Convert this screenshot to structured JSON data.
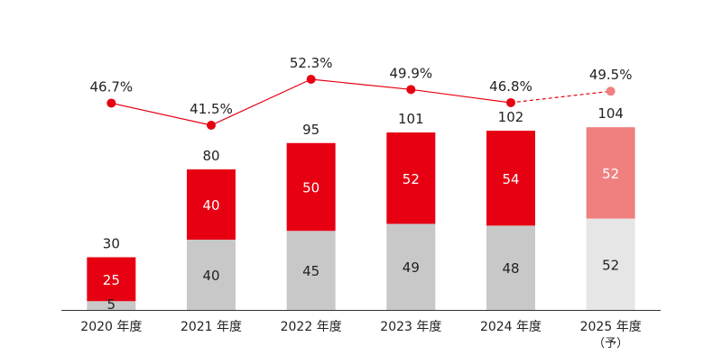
{
  "chart_data": {
    "type": "bar",
    "stacked": true,
    "categories": [
      "2020 年度",
      "2021 年度",
      "2022 年度",
      "2023 年度",
      "2024 年度",
      "2025 年度"
    ],
    "category_sublabels": [
      "",
      "",
      "",
      "",
      "",
      "（予）"
    ],
    "forecast_index": 5,
    "series": [
      {
        "values": [
          5,
          40,
          45,
          49,
          48,
          52
        ]
      },
      {
        "values": [
          25,
          40,
          50,
          52,
          54,
          52
        ]
      }
    ],
    "totals": [
      30,
      80,
      95,
      101,
      102,
      104
    ],
    "line": {
      "type": "line",
      "values": [
        46.7,
        41.5,
        52.3,
        49.9,
        46.8,
        49.5
      ],
      "labels": [
        "46.7%",
        "41.5%",
        "52.3%",
        "49.9%",
        "46.8%",
        "49.5%"
      ],
      "range": [
        25,
        60
      ]
    },
    "ylim": [
      0,
      115
    ],
    "grid": false,
    "colors": {
      "bottom": "#c8c8c8",
      "top": "#e60012",
      "bottom_forecast": "#e6e6e6",
      "top_forecast": "#f08080",
      "line": "#e60012",
      "line_forecast": "#f08080",
      "axis": "#333333",
      "text": "#222222"
    }
  }
}
